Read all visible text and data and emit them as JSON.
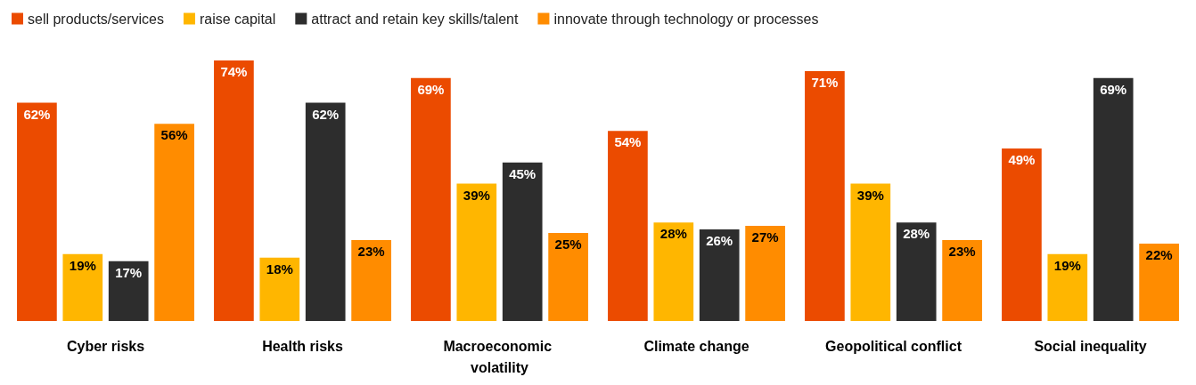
{
  "chart_data": {
    "type": "bar",
    "legend": "top left",
    "categories": [
      "Cyber risks",
      "Health risks",
      "Macroeconomic volatility",
      "Climate change",
      "Geopolitical conflict",
      "Social inequality"
    ],
    "series": [
      {
        "name": "sell products/services",
        "color": "#eb4b00",
        "values": [
          62,
          74,
          69,
          54,
          71,
          49
        ],
        "value_labels": [
          "62%",
          "74%",
          "69%",
          "54%",
          "71%",
          "49%"
        ]
      },
      {
        "name": "raise capital",
        "color": "#ffb600",
        "values": [
          19,
          18,
          39,
          28,
          39,
          19
        ],
        "value_labels": [
          "19%",
          "18%",
          "39%",
          "28%",
          "39%",
          "19%"
        ]
      },
      {
        "name": "attract and retain key skills/talent",
        "color": "#2d2d2d",
        "values": [
          17,
          62,
          45,
          26,
          28,
          69
        ],
        "value_labels": [
          "17%",
          "62%",
          "45%",
          "26%",
          "28%",
          "69%"
        ]
      },
      {
        "name": "innovate through technology or processes",
        "color": "#ff8c00",
        "values": [
          56,
          23,
          25,
          27,
          23,
          22
        ],
        "value_labels": [
          "56%",
          "23%",
          "25%",
          "27%",
          "23%",
          "22%"
        ]
      }
    ]
  }
}
